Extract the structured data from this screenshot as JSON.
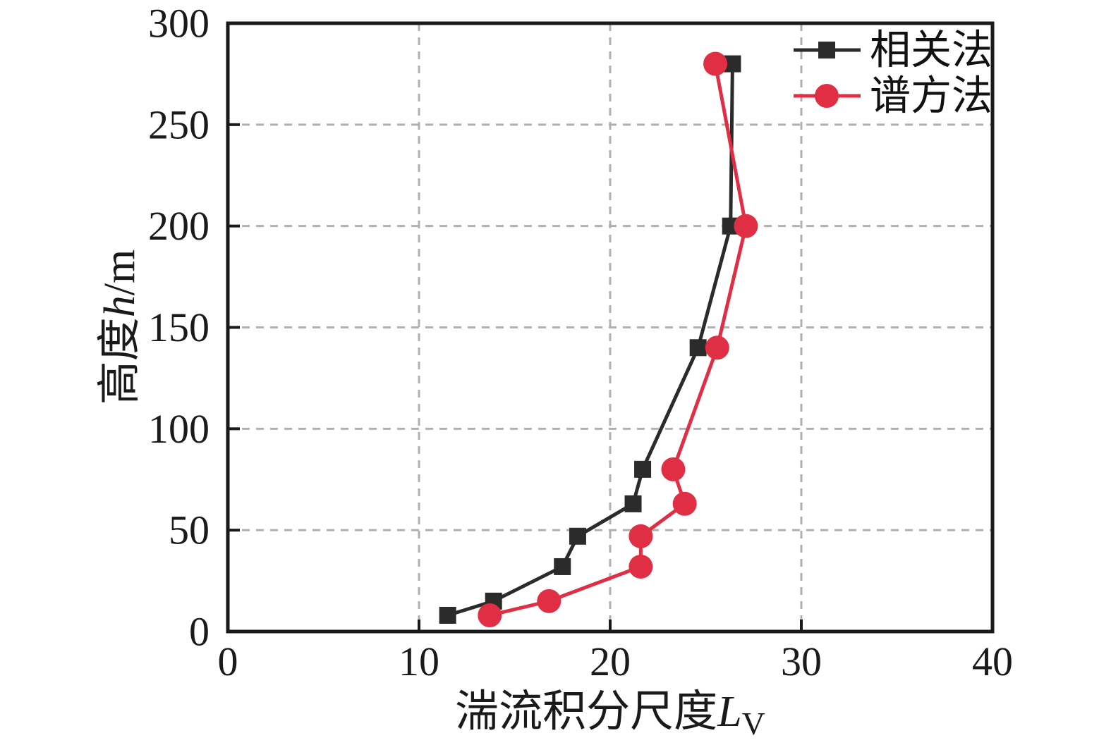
{
  "chart_data": {
    "type": "line",
    "title": "",
    "xlabel": {
      "text": "湍流积分尺度",
      "var": "L",
      "sub": "V"
    },
    "ylabel": {
      "text": "高度",
      "var": "h",
      "suffix": "/m"
    },
    "xlim": [
      0,
      40
    ],
    "ylim": [
      0,
      300
    ],
    "xticks": [
      0,
      10,
      20,
      30,
      40
    ],
    "yticks": [
      0,
      50,
      100,
      150,
      200,
      250,
      300
    ],
    "grid": {
      "style": "dashed",
      "color": "#b0b0b0"
    },
    "axis_color": "#1a1a1a",
    "background": "#ffffff",
    "legend_position": "top-right-inside",
    "series": [
      {
        "name": "相关法",
        "color": "#2b2b2b",
        "marker": "square",
        "points": [
          [
            11.5,
            8
          ],
          [
            13.9,
            15
          ],
          [
            17.5,
            32
          ],
          [
            18.3,
            47
          ],
          [
            21.2,
            63
          ],
          [
            21.7,
            80
          ],
          [
            24.6,
            140
          ],
          [
            26.3,
            200
          ],
          [
            26.4,
            280
          ]
        ]
      },
      {
        "name": "谱方法",
        "color": "#e02e44",
        "marker": "circle",
        "points": [
          [
            13.7,
            8
          ],
          [
            16.8,
            15
          ],
          [
            21.6,
            32
          ],
          [
            21.6,
            47
          ],
          [
            23.9,
            63
          ],
          [
            23.3,
            80
          ],
          [
            25.6,
            140
          ],
          [
            27.1,
            200
          ],
          [
            25.5,
            280
          ]
        ]
      }
    ]
  }
}
